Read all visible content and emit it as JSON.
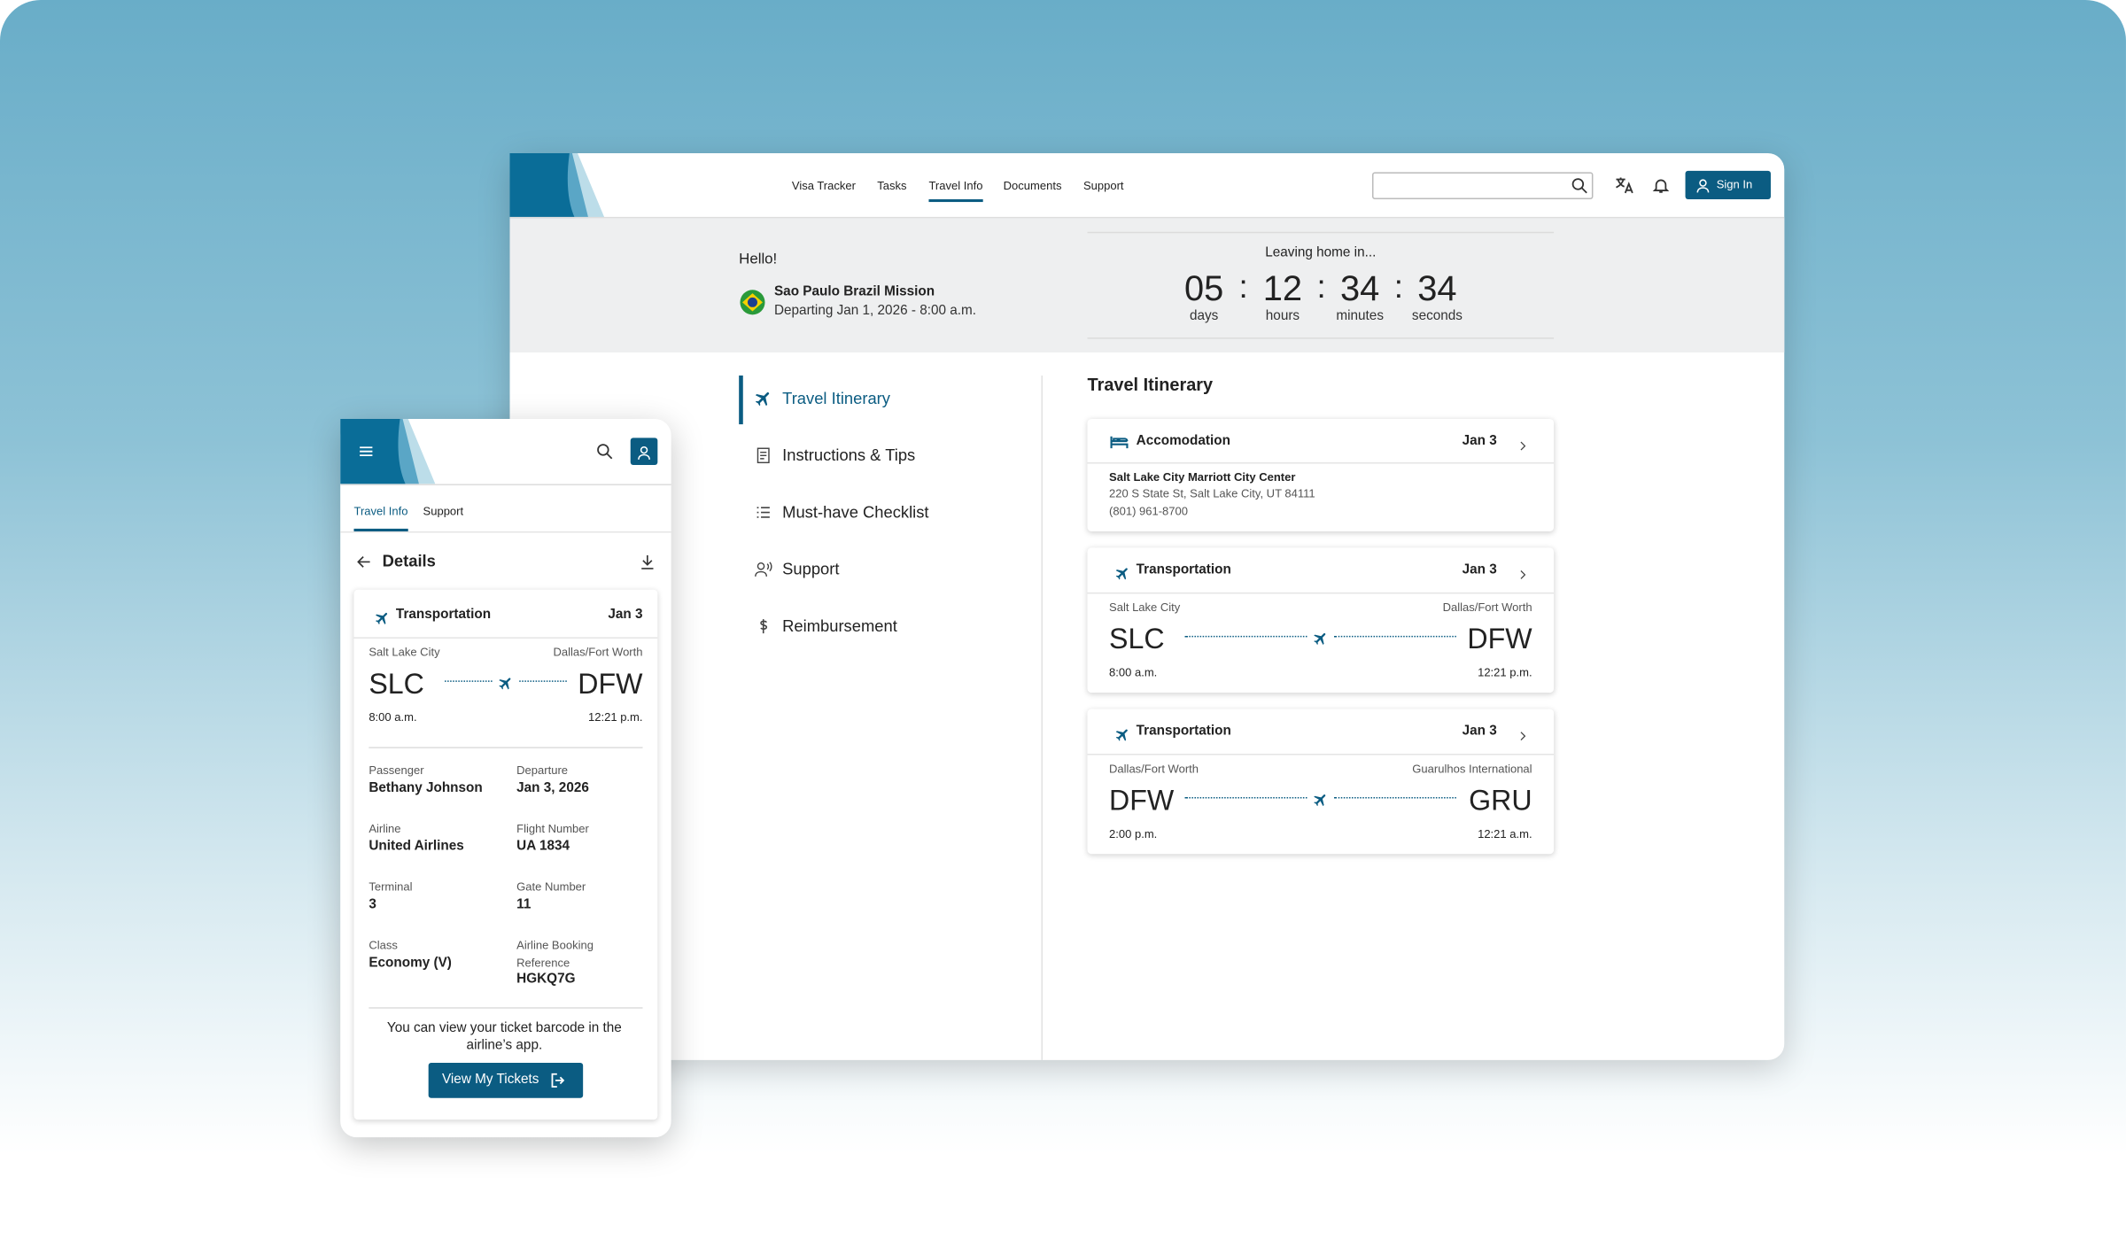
{
  "desktop": {
    "nav": [
      "Visa Tracker",
      "Tasks",
      "Travel Info",
      "Documents",
      "Support"
    ],
    "sign_in": "Sign In",
    "greeting": "Hello!",
    "mission": "Sao Paulo Brazil Mission",
    "departing": "Departing Jan 1, 2026 - 8:00 a.m.",
    "countdown": {
      "title": "Leaving home in...",
      "separator": ":",
      "units": [
        {
          "value": "05",
          "label": "days"
        },
        {
          "value": "12",
          "label": "hours"
        },
        {
          "value": "34",
          "label": "minutes"
        },
        {
          "value": "34",
          "label": "seconds"
        }
      ]
    },
    "side_menu": [
      "Travel Itinerary",
      "Instructions & Tips",
      "Must-have Checklist",
      "Support",
      "Reimbursement"
    ],
    "itinerary_title": "Travel Itinerary",
    "accommodation": {
      "title": "Accomodation",
      "date": "Jan 3",
      "name": "Salt Lake City Marriott City Center",
      "address": "220 S State St, Salt Lake City, UT 84111",
      "phone": "(801) 961-8700"
    },
    "flights": [
      {
        "title": "Transportation",
        "date": "Jan 3",
        "from_city": "Salt Lake City",
        "to_city": "Dallas/Fort Worth",
        "from": "SLC",
        "to": "DFW",
        "depart": "8:00 a.m.",
        "arrive": "12:21 p.m."
      },
      {
        "title": "Transportation",
        "date": "Jan 3",
        "from_city": "Dallas/Fort Worth",
        "to_city": "Guarulhos International",
        "from": "DFW",
        "to": "GRU",
        "depart": "2:00 p.m.",
        "arrive": "12:21 a.m."
      }
    ]
  },
  "mobile": {
    "tabs": [
      "Travel Info",
      "Support"
    ],
    "heading": "Details",
    "flight": {
      "title": "Transportation",
      "date": "Jan 3",
      "from_city": "Salt Lake City",
      "to_city": "Dallas/Fort Worth",
      "from": "SLC",
      "to": "DFW",
      "depart": "8:00 a.m.",
      "arrive": "12:21 p.m."
    },
    "fields": [
      {
        "label": "Passenger",
        "value": "Bethany Johnson"
      },
      {
        "label": "Departure",
        "value": "Jan 3, 2026"
      },
      {
        "label": "Airline",
        "value": "United Airlines"
      },
      {
        "label": "Flight Number",
        "value": "UA 1834"
      },
      {
        "label": "Terminal",
        "value": "3"
      },
      {
        "label": "Gate Number",
        "value": "11"
      },
      {
        "label": "Class",
        "value": "Economy (V)"
      },
      {
        "label": "Airline Booking Reference",
        "value": "HGKQ7G"
      }
    ],
    "note": "You can view your ticket barcode in the airline’s app.",
    "button": "View My Tickets"
  }
}
